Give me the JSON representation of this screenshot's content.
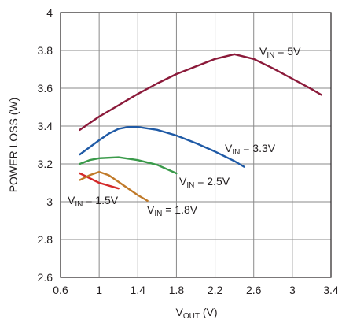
{
  "chart_data": {
    "type": "line",
    "xlabel": {
      "main": "V",
      "sub": "OUT",
      "unit": " (V)"
    },
    "ylabel": "POWER LOSS (W)",
    "xlim": [
      0.6,
      3.4
    ],
    "ylim": [
      2.6,
      4.0
    ],
    "xticks": [
      "0.6",
      "1",
      "1.4",
      "1.8",
      "2.2",
      "2.6",
      "3",
      "3.4"
    ],
    "yticks": [
      "2.6",
      "2.8",
      "3",
      "3.2",
      "3.4",
      "3.6",
      "3.8",
      "4"
    ],
    "grid": true,
    "series": [
      {
        "color": "#8b1a3a",
        "label": {
          "main": "V",
          "sub": "IN",
          "rest": " = 5V"
        },
        "points": [
          [
            0.8,
            3.38
          ],
          [
            1.0,
            3.45
          ],
          [
            1.2,
            3.51
          ],
          [
            1.4,
            3.57
          ],
          [
            1.6,
            3.625
          ],
          [
            1.8,
            3.675
          ],
          [
            2.0,
            3.715
          ],
          [
            2.2,
            3.755
          ],
          [
            2.4,
            3.78
          ],
          [
            2.6,
            3.755
          ],
          [
            2.8,
            3.705
          ],
          [
            3.0,
            3.65
          ],
          [
            3.2,
            3.595
          ],
          [
            3.3,
            3.565
          ]
        ]
      },
      {
        "color": "#1f5aa6",
        "label": {
          "main": "V",
          "sub": "IN",
          "rest": " = 3.3V"
        },
        "points": [
          [
            0.8,
            3.25
          ],
          [
            1.0,
            3.325
          ],
          [
            1.1,
            3.36
          ],
          [
            1.2,
            3.385
          ],
          [
            1.3,
            3.395
          ],
          [
            1.4,
            3.395
          ],
          [
            1.6,
            3.38
          ],
          [
            1.8,
            3.35
          ],
          [
            2.0,
            3.31
          ],
          [
            2.2,
            3.265
          ],
          [
            2.4,
            3.215
          ],
          [
            2.5,
            3.185
          ]
        ]
      },
      {
        "color": "#3a9a4a",
        "label": {
          "main": "V",
          "sub": "IN",
          "rest": " = 2.5V"
        },
        "points": [
          [
            0.8,
            3.2
          ],
          [
            0.9,
            3.22
          ],
          [
            1.0,
            3.23
          ],
          [
            1.2,
            3.235
          ],
          [
            1.4,
            3.22
          ],
          [
            1.6,
            3.195
          ],
          [
            1.8,
            3.15
          ]
        ]
      },
      {
        "color": "#d42a2a",
        "label": {
          "main": "V",
          "sub": "IN",
          "rest": " = 1.5V"
        },
        "points": [
          [
            0.8,
            3.15
          ],
          [
            1.0,
            3.1
          ],
          [
            1.2,
            3.07
          ]
        ]
      },
      {
        "color": "#c07a2a",
        "label": {
          "main": "V",
          "sub": "IN",
          "rest": " = 1.8V"
        },
        "points": [
          [
            0.8,
            3.115
          ],
          [
            0.9,
            3.14
          ],
          [
            1.0,
            3.158
          ],
          [
            1.1,
            3.14
          ],
          [
            1.2,
            3.105
          ],
          [
            1.3,
            3.07
          ],
          [
            1.4,
            3.035
          ],
          [
            1.5,
            3.005
          ]
        ]
      }
    ]
  }
}
